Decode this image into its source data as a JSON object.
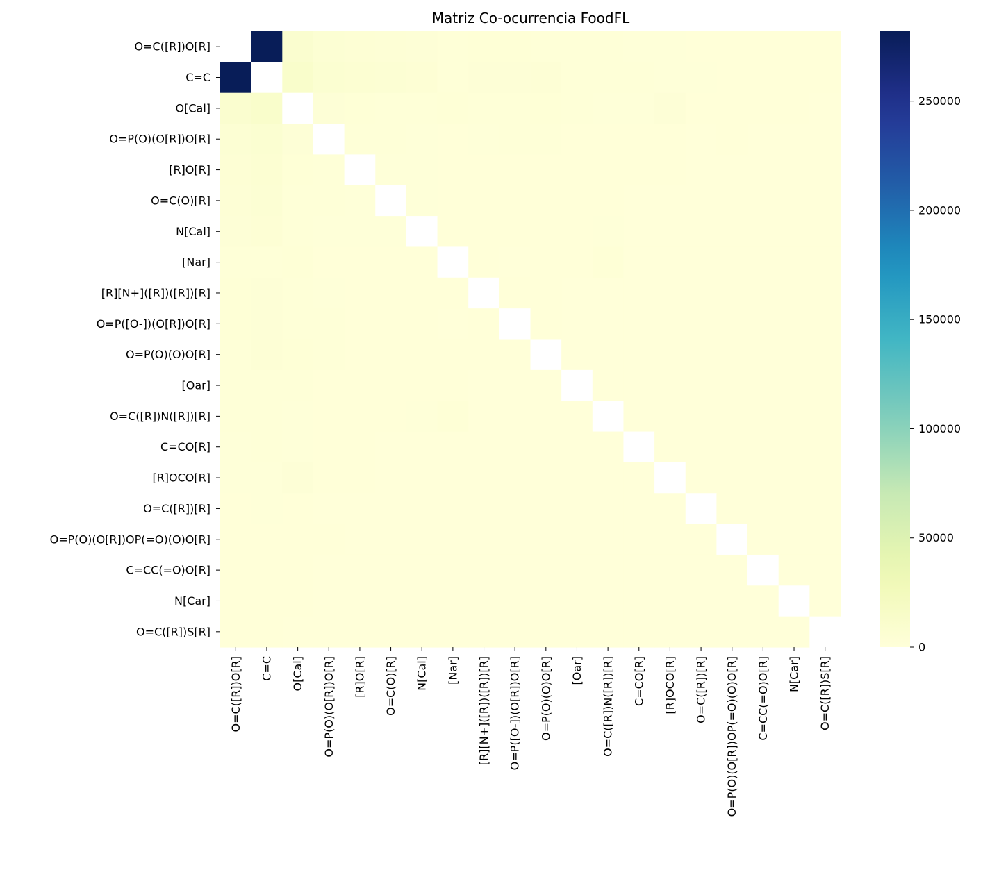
{
  "chart_data": {
    "type": "heatmap",
    "title": "Matriz Co-ocurrencia FoodFL",
    "xlabel": "",
    "ylabel": "",
    "labels": [
      "O=C([R])O[R]",
      "C=C",
      "O[Cal]",
      "O=P(O)(O[R])O[R]",
      "[R]O[R]",
      "O=C(O)[R]",
      "N[Cal]",
      "[Nar]",
      "[R][N+]([R])([R])[R]",
      "O=P([O-])(O[R])O[R]",
      "O=P(O)(O)O[R]",
      "[Oar]",
      "O=C([R])N([R])[R]",
      "C=CO[R]",
      "[R]OCO[R]",
      "O=C([R])[R]",
      "O=P(O)(O[R])OP(=O)(O)O[R]",
      "C=CC(=O)O[R]",
      "N[Car]",
      "O=C([R])S[R]"
    ],
    "diagonal": "masked",
    "colormap": "YlGnBu",
    "vmin": 0,
    "vmax": 282000,
    "colorbar_ticks": [
      0,
      50000,
      100000,
      150000,
      200000,
      250000
    ],
    "values": [
      [
        null,
        282000,
        9000,
        5000,
        4000,
        3500,
        3000,
        2000,
        2500,
        2500,
        2000,
        1500,
        1500,
        1000,
        1000,
        800,
        500,
        500,
        500,
        500
      ],
      [
        282000,
        null,
        12000,
        7000,
        6000,
        5000,
        4000,
        2000,
        3000,
        3000,
        3500,
        2000,
        1500,
        1500,
        1200,
        1000,
        600,
        800,
        500,
        500
      ],
      [
        9000,
        12000,
        null,
        3000,
        2500,
        2000,
        1500,
        2500,
        2000,
        1500,
        2500,
        1500,
        1000,
        1000,
        3000,
        800,
        500,
        500,
        500,
        300
      ],
      [
        5000,
        7000,
        3000,
        null,
        1500,
        1500,
        1000,
        800,
        1000,
        1500,
        1500,
        800,
        600,
        500,
        500,
        400,
        600,
        300,
        300,
        200
      ],
      [
        4000,
        6000,
        2500,
        1500,
        null,
        1200,
        1000,
        800,
        800,
        800,
        800,
        600,
        600,
        500,
        500,
        400,
        300,
        300,
        300,
        200
      ],
      [
        3500,
        5000,
        2000,
        1500,
        1200,
        null,
        1000,
        600,
        600,
        600,
        800,
        500,
        500,
        400,
        400,
        300,
        200,
        300,
        200,
        200
      ],
      [
        3000,
        4000,
        1500,
        1000,
        1000,
        1000,
        null,
        700,
        600,
        500,
        600,
        500,
        1000,
        300,
        300,
        300,
        200,
        200,
        300,
        100
      ],
      [
        2000,
        2000,
        2500,
        800,
        800,
        600,
        700,
        null,
        600,
        400,
        600,
        800,
        2500,
        300,
        300,
        300,
        200,
        200,
        300,
        100
      ],
      [
        2500,
        3000,
        2000,
        1000,
        800,
        600,
        600,
        600,
        null,
        500,
        500,
        300,
        400,
        300,
        300,
        200,
        200,
        200,
        200,
        100
      ],
      [
        2500,
        3000,
        1500,
        1500,
        800,
        600,
        500,
        400,
        500,
        null,
        500,
        300,
        300,
        300,
        300,
        200,
        200,
        200,
        100,
        100
      ],
      [
        2000,
        3500,
        2500,
        1500,
        800,
        800,
        600,
        600,
        500,
        500,
        null,
        300,
        300,
        300,
        300,
        200,
        200,
        200,
        100,
        100
      ],
      [
        1500,
        2000,
        1500,
        800,
        600,
        500,
        500,
        800,
        300,
        300,
        300,
        null,
        300,
        200,
        200,
        200,
        100,
        100,
        200,
        100
      ],
      [
        1500,
        1500,
        1000,
        600,
        600,
        500,
        1000,
        2500,
        400,
        300,
        300,
        300,
        null,
        200,
        200,
        200,
        100,
        100,
        100,
        100
      ],
      [
        1000,
        1500,
        1000,
        500,
        500,
        400,
        300,
        300,
        300,
        300,
        300,
        200,
        200,
        null,
        200,
        200,
        100,
        100,
        100,
        100
      ],
      [
        1000,
        1200,
        3000,
        500,
        500,
        400,
        300,
        300,
        300,
        300,
        300,
        200,
        200,
        200,
        null,
        200,
        100,
        100,
        100,
        100
      ],
      [
        800,
        1000,
        800,
        400,
        400,
        300,
        300,
        300,
        200,
        200,
        200,
        200,
        200,
        200,
        200,
        null,
        100,
        100,
        100,
        100
      ],
      [
        500,
        600,
        500,
        600,
        300,
        200,
        200,
        200,
        200,
        200,
        200,
        100,
        100,
        100,
        100,
        100,
        null,
        100,
        100,
        100
      ],
      [
        500,
        800,
        500,
        300,
        300,
        300,
        200,
        200,
        200,
        200,
        200,
        100,
        100,
        100,
        100,
        100,
        100,
        null,
        100,
        100
      ],
      [
        500,
        500,
        500,
        300,
        300,
        200,
        300,
        300,
        200,
        100,
        100,
        200,
        100,
        100,
        100,
        100,
        100,
        100,
        null,
        100
      ],
      [
        500,
        500,
        300,
        200,
        200,
        200,
        100,
        100,
        100,
        100,
        100,
        100,
        100,
        100,
        100,
        100,
        100,
        100,
        100,
        null
      ]
    ]
  }
}
